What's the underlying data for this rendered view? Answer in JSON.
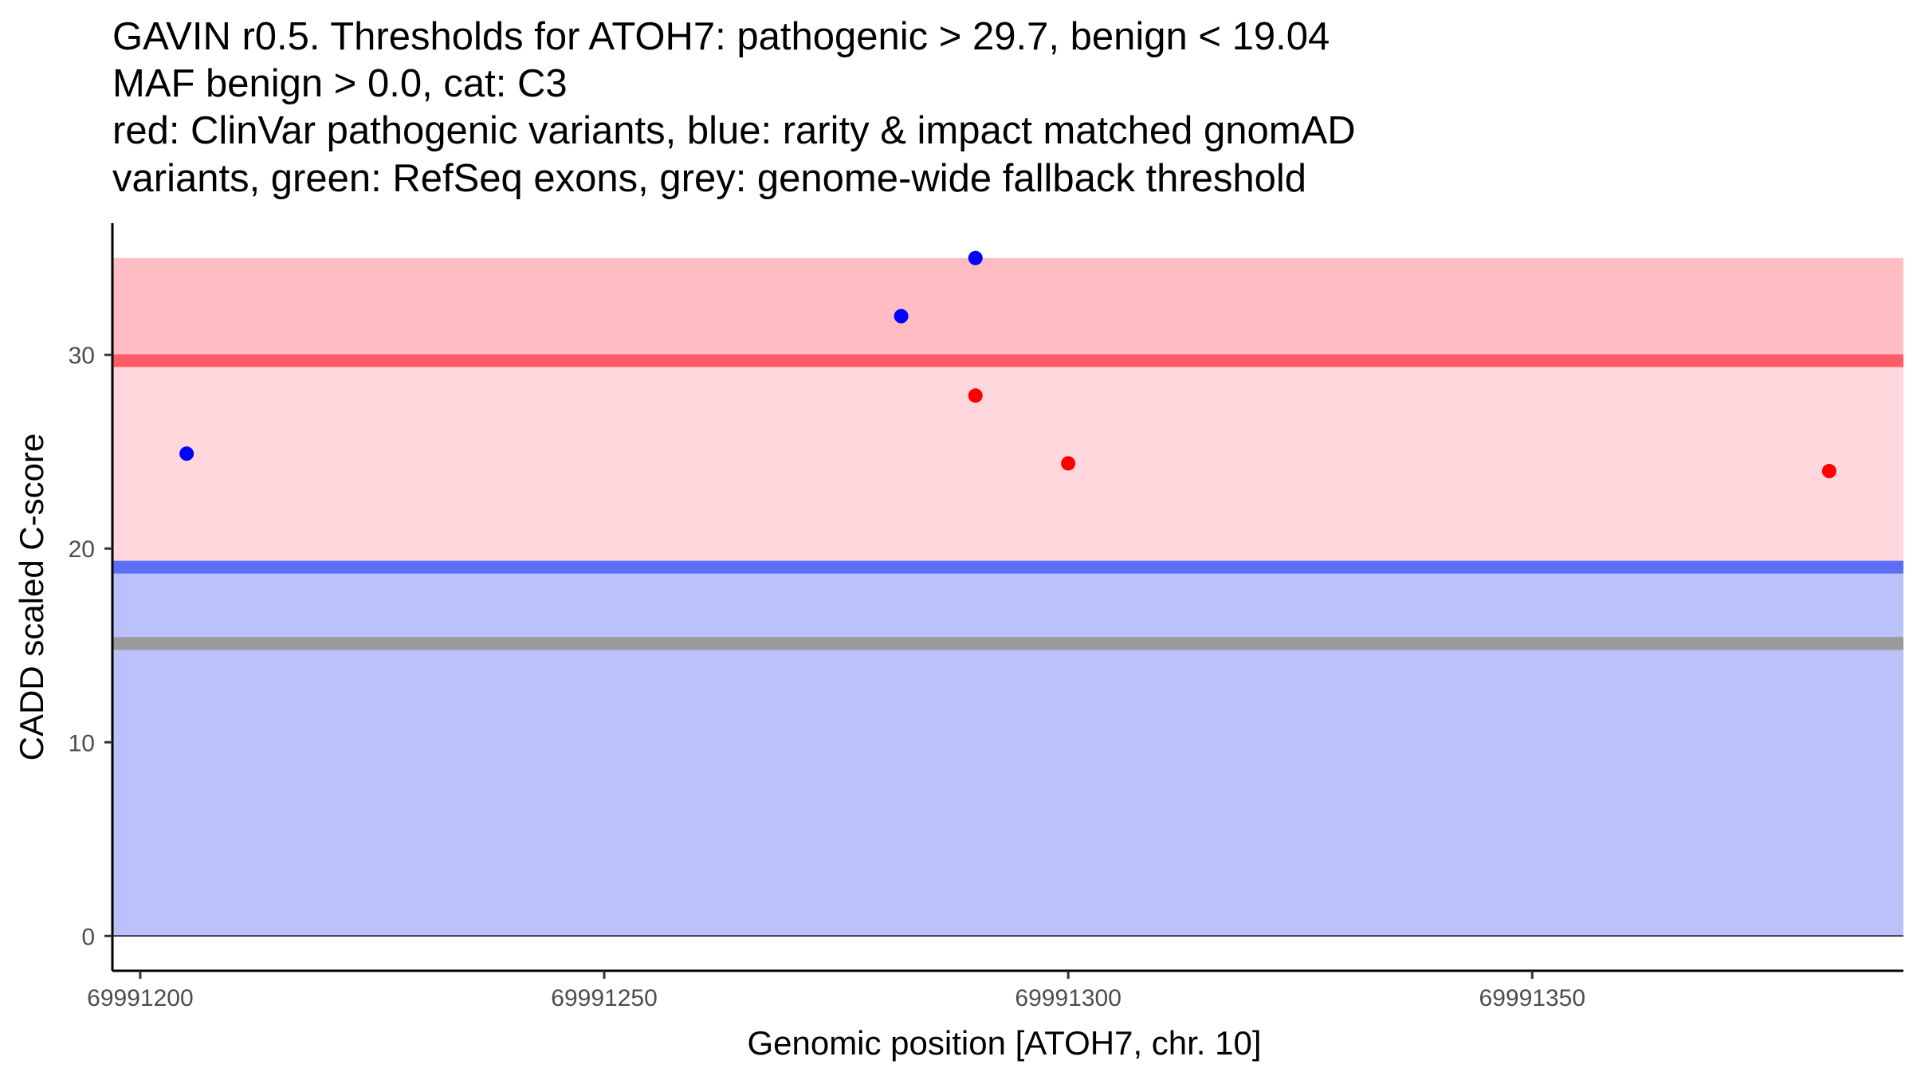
{
  "chart_data": {
    "type": "scatter",
    "title_lines": [
      "GAVIN r0.5. Thresholds for ATOH7: pathogenic > 29.7, benign < 19.04",
      "MAF benign > 0.0, cat: C3",
      "red: ClinVar pathogenic variants, blue: rarity & impact matched gnomAD",
      "variants, green: RefSeq exons, grey: genome-wide fallback threshold"
    ],
    "xlabel": "Genomic position [ATOH7, chr. 10]",
    "ylabel": "CADD scaled C-score",
    "xlim": [
      69991197,
      69991390
    ],
    "ylim": [
      -1.8,
      36.8
    ],
    "x_ticks": [
      {
        "value": 69991200,
        "label": "69991200"
      },
      {
        "value": 69991250,
        "label": "69991250"
      },
      {
        "value": 69991300,
        "label": "69991300"
      },
      {
        "value": 69991350,
        "label": "69991350"
      }
    ],
    "y_ticks": [
      {
        "value": 0,
        "label": "0"
      },
      {
        "value": 10,
        "label": "10"
      },
      {
        "value": 20,
        "label": "20"
      },
      {
        "value": 30,
        "label": "30"
      }
    ],
    "regions": [
      {
        "name": "benign-range",
        "y0": 0,
        "y1": 19.04,
        "color": "#bbc1fa"
      },
      {
        "name": "intermediate-range",
        "y0": 19.04,
        "y1": 29.7,
        "color": "#ffd7dc"
      },
      {
        "name": "pathogenic-range",
        "y0": 29.7,
        "y1": 35,
        "color": "#ffbcc2"
      }
    ],
    "thresholds": [
      {
        "name": "pathogenic-threshold",
        "value": 29.7,
        "color": "#ff5c68"
      },
      {
        "name": "benign-threshold",
        "value": 19.04,
        "color": "#5b6ef5"
      },
      {
        "name": "fallback-threshold",
        "value": 15.1,
        "color": "#999999"
      }
    ],
    "series": [
      {
        "name": "ClinVar pathogenic variants",
        "color": "#ff0000",
        "points": [
          {
            "x": 69991290,
            "y": 27.9
          },
          {
            "x": 69991300,
            "y": 24.4
          },
          {
            "x": 69991382,
            "y": 24.0
          }
        ]
      },
      {
        "name": "rarity & impact matched gnomAD variants",
        "color": "#0000ff",
        "points": [
          {
            "x": 69991205,
            "y": 24.9
          },
          {
            "x": 69991282,
            "y": 32.0
          },
          {
            "x": 69991290,
            "y": 35.0
          }
        ]
      }
    ]
  }
}
